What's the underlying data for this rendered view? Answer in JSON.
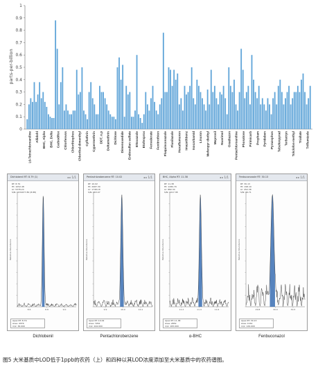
{
  "chart_data": [
    {
      "type": "bar",
      "ylabel": "parts-per-billion",
      "ylim": [
        0,
        1
      ],
      "yticks": [
        0,
        0.1,
        0.2,
        0.3,
        0.4,
        0.5,
        0.6,
        0.7,
        0.8,
        0.9,
        1
      ],
      "grid": false,
      "bar_color": "#62a6d9",
      "category_labels": [
        "6,6-Tetrachloroaniline",
        "Allidohl",
        "BHC, Alpha",
        "BHC, Delta",
        "Carbodifox",
        "Chlorfenvos",
        "Chlorthiophos",
        "Chlorthal dimenthyl",
        "Cyfluthrin",
        "Cypermethrin",
        "DDT, o,p",
        "Deltamethrin",
        "Dichlone",
        "Dimenoxedide",
        "Endosulfan sulfate",
        "Ettoxazole",
        "Etofenprox",
        "Fenvalerate",
        "Fenitrothion",
        "Fluquinconazole",
        "Flusilazole",
        "Hexaflumuron",
        "Imazethbenz",
        "Isocarbamid",
        "Linuron",
        "Mefenpyr diethyl",
        "Mepronil",
        "Nuarimol",
        "Oxadiazon",
        "Pentachloroaniline",
        "Phosalone",
        "Pirimicarb",
        "Propham",
        "Pyridaben",
        "Pyrazophos",
        "Tebufenpyrad",
        "Terbutryn",
        "Tolclofos-methyl",
        "Triallate",
        "Triflumizole"
      ],
      "values": [
        0.08,
        0.2,
        0.25,
        0.22,
        0.38,
        0.22,
        0.28,
        0.38,
        0.25,
        0.3,
        0.22,
        0.18,
        0.12,
        0.1,
        0.09,
        0.09,
        0.88,
        0.65,
        0.2,
        0.38,
        0.5,
        0.15,
        0.2,
        0.15,
        0.12,
        0.12,
        0.15,
        0.15,
        0.48,
        0.28,
        0.3,
        0.5,
        0.15,
        0.12,
        0.08,
        0.3,
        0.38,
        0.25,
        0.2,
        0.12,
        0.12,
        0.35,
        0.3,
        0.3,
        0.25,
        0.2,
        0.15,
        0.12,
        0.1,
        0.1,
        0.08,
        0.5,
        0.58,
        0.4,
        0.52,
        0.1,
        0.35,
        0.28,
        0.3,
        0.1,
        0.1,
        0.15,
        0.6,
        0.12,
        0.09,
        0.05,
        0.12,
        0.3,
        0.2,
        0.15,
        0.25,
        0.35,
        0.22,
        0.15,
        0.12,
        0.2,
        0.25,
        0.78,
        0.3,
        0.3,
        0.5,
        0.48,
        0.35,
        0.48,
        0.4,
        0.45,
        0.2,
        0.25,
        0.15,
        0.35,
        0.28,
        0.3,
        0.35,
        0.5,
        0.25,
        0.2,
        0.4,
        0.35,
        0.3,
        0.25,
        0.2,
        0.15,
        0.32,
        0.2,
        0.48,
        0.3,
        0.35,
        0.25,
        0.2,
        0.3,
        0.28,
        0.35,
        0.25,
        0.12,
        0.5,
        0.35,
        0.3,
        0.4,
        0.2,
        0.15,
        0.3,
        0.65,
        0.48,
        0.25,
        0.3,
        0.35,
        0.2,
        0.6,
        0.4,
        0.3,
        0.25,
        0.35,
        0.2,
        0.25,
        0.2,
        0.15,
        0.25,
        0.2,
        0.12,
        0.25,
        0.3,
        0.2,
        0.35,
        0.4,
        0.3,
        0.2,
        0.25,
        0.3,
        0.35,
        0.2,
        0.25,
        0.3,
        0.3,
        0.35,
        0.3,
        0.4,
        0.45,
        0.3,
        0.2,
        0.25,
        0.35
      ]
    },
    [
      {
        "type": "line",
        "title": "Dichlobenil",
        "accent": "#3a6fb3",
        "header": "Dichlobenil RT: 8.79 (1)",
        "info": [
          "RT: 8.79",
          "Ht: 1052.48",
          "Ar: 5378.24",
          "S/N: 1034477.80 (8.88)"
        ],
        "xticks": [
          "8.6",
          "8.8",
          "9.0"
        ],
        "footer": [
          "Apex RT: 8.79",
          "Area: 4376",
          "m/z: 36.000"
        ],
        "peak_pos": 0.44,
        "peak_width": 0.05,
        "noise": 0.05
      },
      {
        "type": "line",
        "title": "Pentachlorobenzene",
        "accent": "#3a6fb3",
        "header": "Pentachlorobenzene RT: 10.02",
        "info": [
          "RT: 10.02",
          "Ht: 2987.30",
          "Ar: 1748.18",
          "S/N: 463.97"
        ],
        "xticks": [
          "9.9",
          "10.0",
          "10.1"
        ],
        "footer": [
          "Apex RT: 10.02",
          "Area: 7261",
          "m/z: 244.000"
        ],
        "peak_pos": 0.48,
        "peak_width": 0.06,
        "noise": 0.1
      },
      {
        "type": "line",
        "title": "α-BHC",
        "accent": "#3a6fb3",
        "header": "BHC, Alpha RT: 11.38",
        "info": [
          "RT: 11.38",
          "Ht: 1280.79",
          "Ar: 882.34",
          "S/N: 1017.38"
        ],
        "xticks": [
          "11.2",
          "11.4",
          "11.6"
        ],
        "footer": [
          "Apex RT: 11.38",
          "Area: 2652",
          "m/z: 183.000"
        ],
        "peak_pos": 0.52,
        "peak_width": 0.06,
        "noise": 0.12
      },
      {
        "type": "line",
        "title": "Fenbuconazol",
        "accent": "#3a6fb3",
        "header": "Fenbuconazole RT: 30.13",
        "info": [
          "RT: 30.13",
          "Ht: 198.10",
          "Ar: 452.38",
          "S/N: 46.71"
        ],
        "xticks": [
          "29.8",
          "30.0",
          "30.3"
        ],
        "footer": [
          "Apex RT: 30.13",
          "Area: 1161",
          "m/z: 129.000"
        ],
        "peak_pos": 0.45,
        "peak_width": 0.09,
        "noise": 0.3
      }
    ]
  ],
  "caption": "图5 大米基质中LOD低于1ppb的农药（上）和四种以其LOD浓度添加至大米基质中的农药谱图。"
}
